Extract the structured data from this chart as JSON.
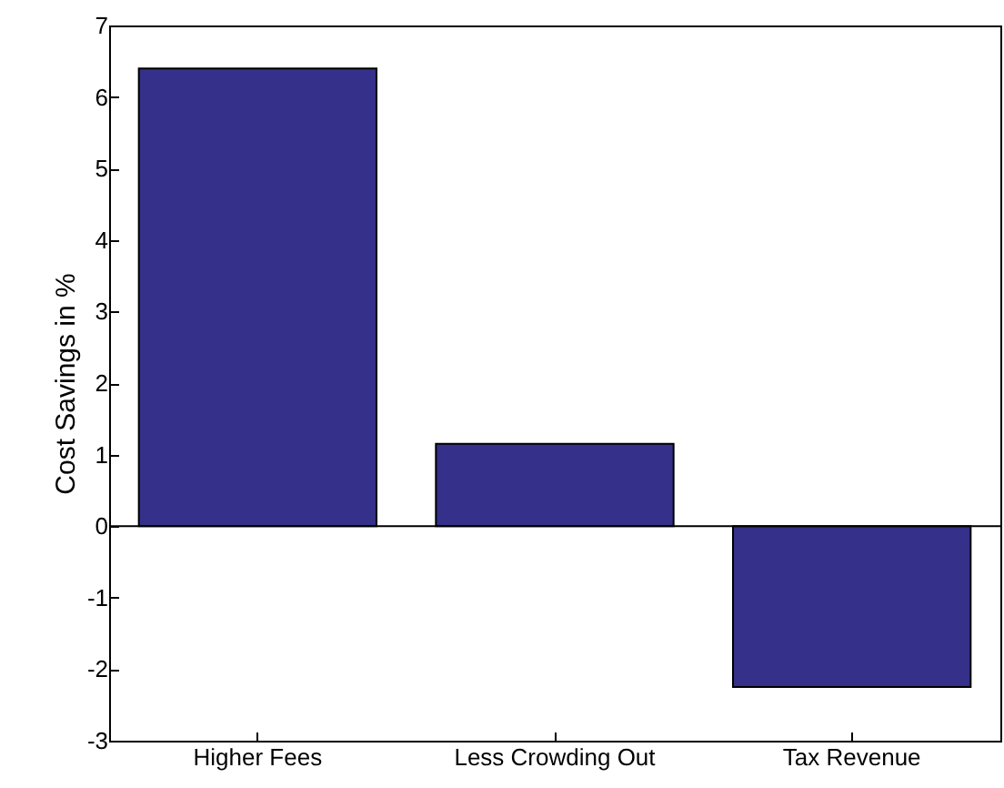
{
  "chart_data": {
    "type": "bar",
    "ylabel": "Cost Savings in %",
    "categories": [
      "Higher Fees",
      "Less Crowding Out",
      "Tax Revenue"
    ],
    "values": [
      6.4,
      1.15,
      -2.25
    ],
    "color": "#35308a",
    "ylim": [
      -3,
      7
    ],
    "yticks": [
      -3,
      -2,
      -1,
      0,
      1,
      2,
      3,
      4,
      5,
      6,
      7
    ],
    "grid": false,
    "ref_lines": [
      {
        "axis": "y",
        "value": 0,
        "color": "#000000"
      }
    ]
  }
}
